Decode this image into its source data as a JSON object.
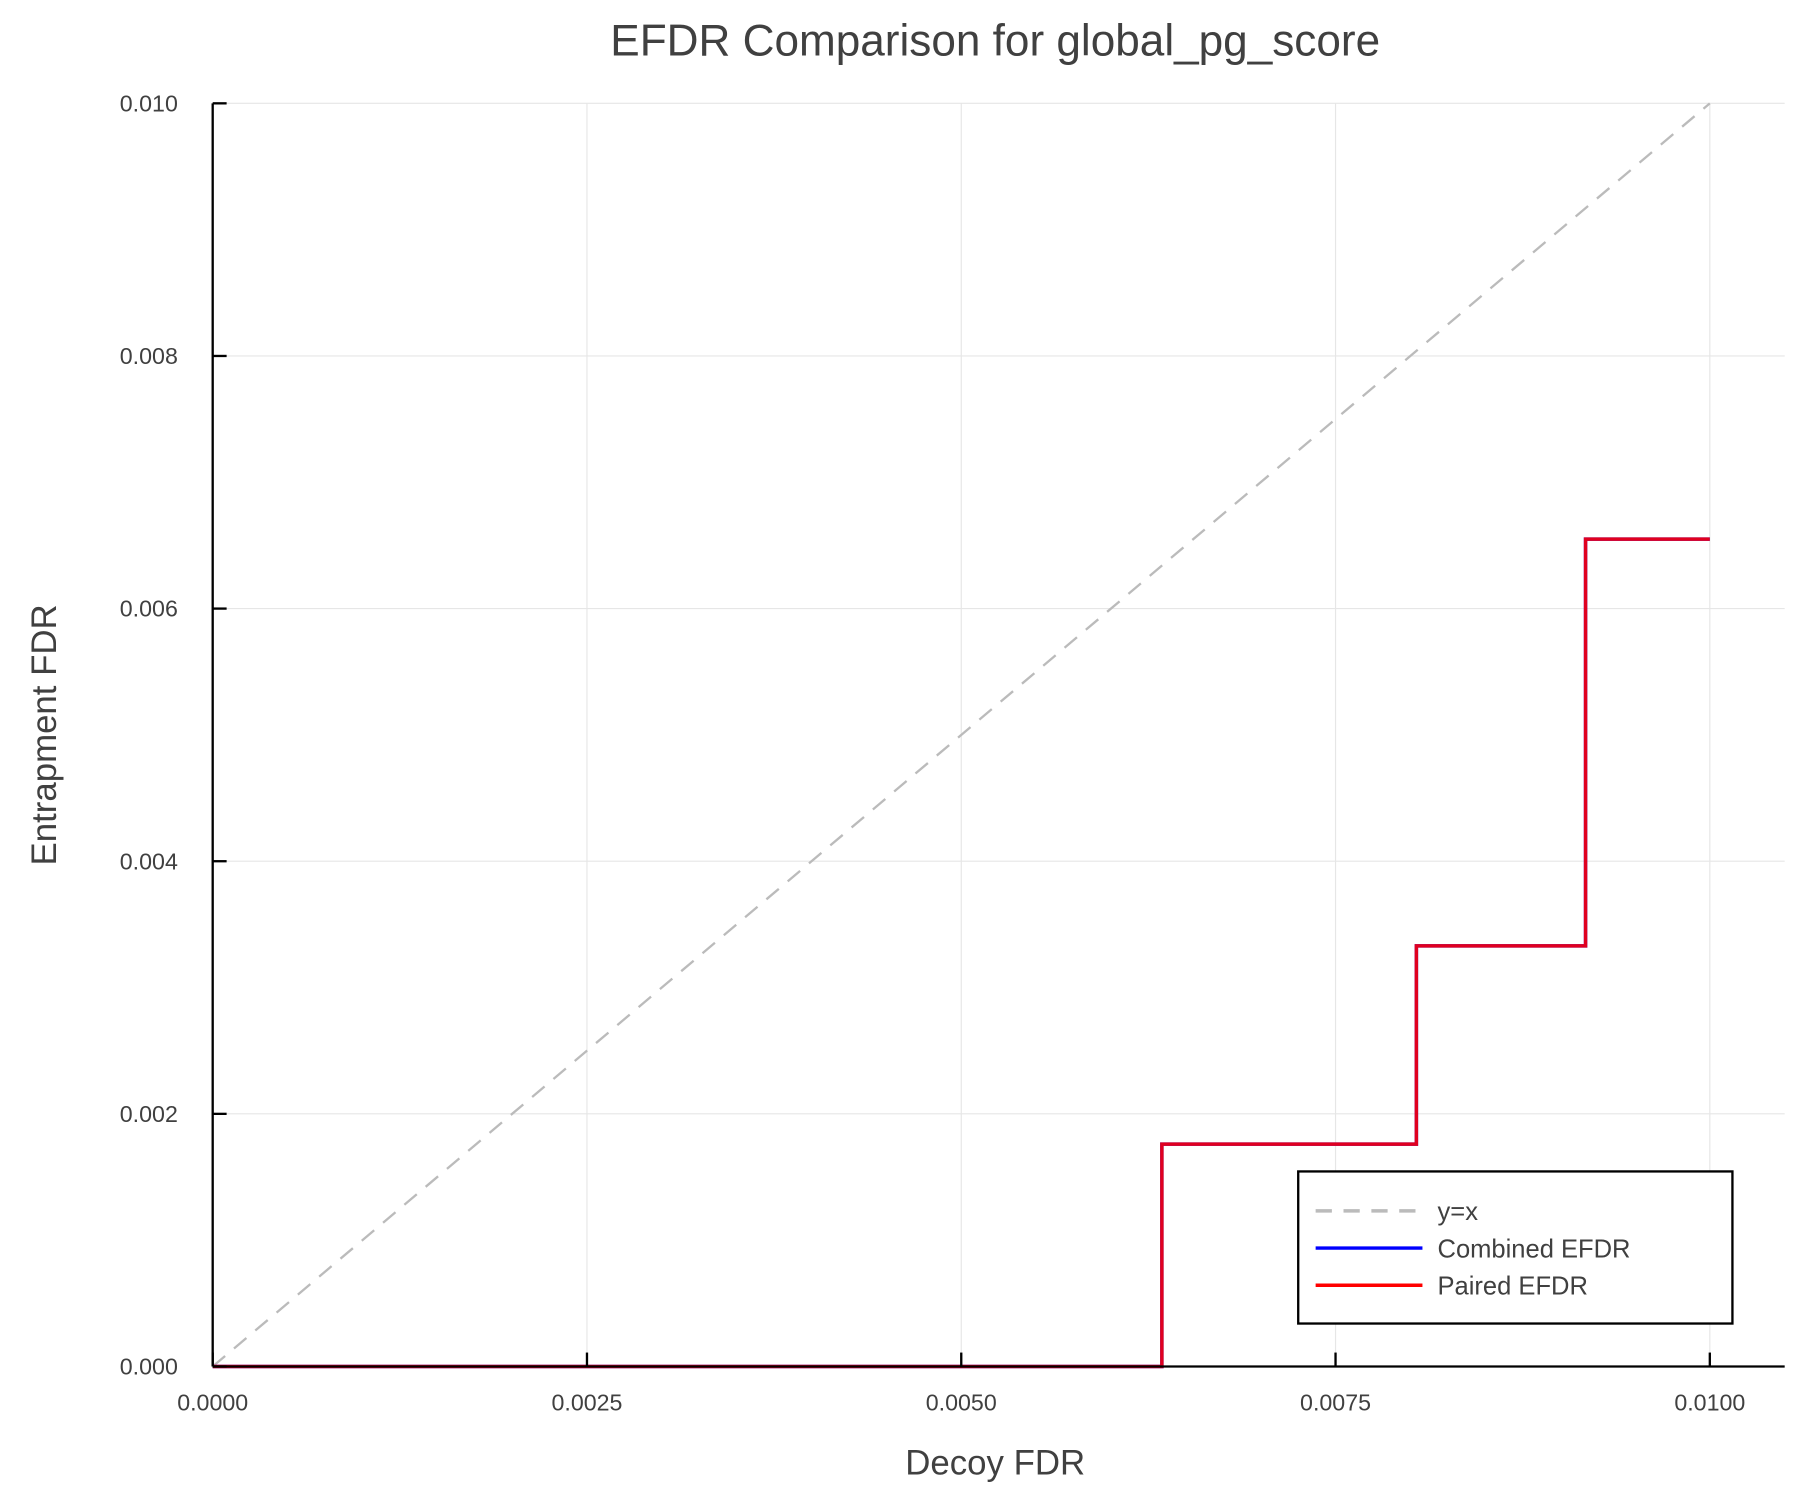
{
  "chart_data": {
    "type": "line",
    "title": "EFDR Comparison for global_pg_score",
    "xlabel": "Decoy FDR",
    "ylabel": "Entrapment FDR",
    "xlim": [
      0,
      0.0105
    ],
    "ylim": [
      0,
      0.01
    ],
    "grid": true,
    "legend_position": "bottom-right",
    "xticks": [
      0,
      0.0025,
      0.005,
      0.0075,
      0.01
    ],
    "xtick_labels": [
      "0.0000",
      "0.0025",
      "0.0050",
      "0.0075",
      "0.0100"
    ],
    "yticks": [
      0,
      0.002,
      0.004,
      0.006,
      0.008,
      0.01
    ],
    "ytick_labels": [
      "0.000",
      "0.002",
      "0.004",
      "0.006",
      "0.008",
      "0.010"
    ],
    "series": [
      {
        "name": "y=x",
        "color": "#bbbbbb",
        "style": "dashed",
        "x": [
          0,
          0.01
        ],
        "y": [
          0,
          0.01
        ]
      },
      {
        "name": "Combined EFDR",
        "color": "#0000ff",
        "style": "step",
        "x": [
          0,
          0.00634,
          0.00634,
          0.00804,
          0.00804,
          0.00917,
          0.00917,
          0.01
        ],
        "y": [
          0,
          0,
          0.00176,
          0.00176,
          0.00333,
          0.00333,
          0.00655,
          0.00655
        ]
      },
      {
        "name": "Paired EFDR",
        "color": "#ff0000",
        "style": "step",
        "x": [
          0,
          0.00634,
          0.00634,
          0.00804,
          0.00804,
          0.00917,
          0.00917,
          0.01
        ],
        "y": [
          0,
          0,
          0.00176,
          0.00176,
          0.00333,
          0.00333,
          0.00655,
          0.00655
        ]
      }
    ]
  }
}
